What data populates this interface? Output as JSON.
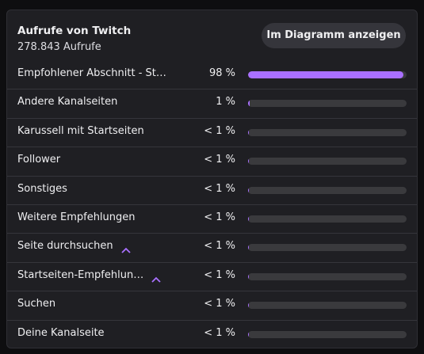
{
  "header": {
    "title": "Aufrufe von Twitch",
    "subtitle": "278.843 Aufrufe",
    "button": "Im Diagramm anzeigen"
  },
  "xlim": [
    0,
    100
  ],
  "bar_color": "#a970ff",
  "rows": [
    {
      "label": "Empfohlener Abschnitt - St…",
      "value": 98,
      "value_label": "98 %"
    },
    {
      "label": "Andere Kanalseiten",
      "value": 1,
      "value_label": "1 %"
    },
    {
      "label": "Karussell mit Startseiten",
      "value": 0.5,
      "value_label": "< 1 %"
    },
    {
      "label": "Follower",
      "value": 0.5,
      "value_label": "< 1 %"
    },
    {
      "label": "Sonstiges",
      "value": 0.5,
      "value_label": "< 1 %"
    },
    {
      "label": "Weitere Empfehlungen",
      "value": 0.5,
      "value_label": "< 1 %"
    },
    {
      "label": "Seite durchsuchen",
      "value": 0.5,
      "value_label": "< 1 %",
      "caret": true
    },
    {
      "label": "Startseiten-Empfehlun…",
      "value": 0.5,
      "value_label": "< 1 %",
      "caret": true
    },
    {
      "label": "Suchen",
      "value": 0.5,
      "value_label": "< 1 %"
    },
    {
      "label": "Deine Kanalseite",
      "value": 0.5,
      "value_label": "< 1 %"
    }
  ]
}
